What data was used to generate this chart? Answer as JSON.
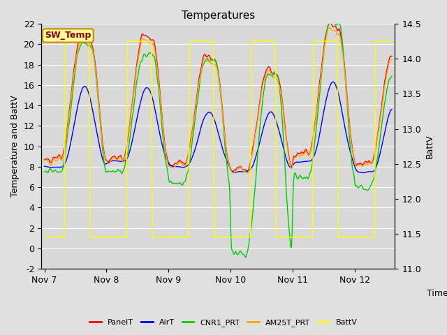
{
  "title": "Temperatures",
  "ylabel_left": "Temperature and BattV",
  "ylabel_right": "BattV",
  "xlabel": "Time",
  "annotation": "SW_Temp",
  "ylim_left": [
    -2,
    22
  ],
  "ylim_right": [
    11.0,
    14.5
  ],
  "bg_color": "#e0e0e0",
  "plot_bg": "#d8d8d8",
  "legend_entries": [
    "PanelT",
    "AirT",
    "CNR1_PRT",
    "AM25T_PRT",
    "BattV"
  ],
  "line_colors": [
    "red",
    "blue",
    "#00cc00",
    "orange",
    "yellow"
  ],
  "xtick_labels": [
    "Nov 7",
    "Nov 8",
    "Nov 9",
    "Nov 10",
    "Nov 11",
    "Nov 12"
  ],
  "ytick_left": [
    -2,
    0,
    2,
    4,
    6,
    8,
    10,
    12,
    14,
    16,
    18,
    20,
    22
  ],
  "ytick_right": [
    11.0,
    11.5,
    12.0,
    12.5,
    13.0,
    13.5,
    14.0,
    14.5
  ]
}
